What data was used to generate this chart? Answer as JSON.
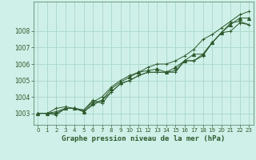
{
  "title": "Graphe pression niveau de la mer (hPa)",
  "background_color": "#cff0e8",
  "grid_color": "#a8d8cc",
  "line_color": "#2d5a2d",
  "xlim": [
    -0.5,
    23.5
  ],
  "ylim": [
    1002.3,
    1009.8
  ],
  "yticks": [
    1003,
    1004,
    1005,
    1006,
    1007,
    1008
  ],
  "xticks": [
    0,
    1,
    2,
    3,
    4,
    5,
    6,
    7,
    8,
    9,
    10,
    11,
    12,
    13,
    14,
    15,
    16,
    17,
    18,
    19,
    20,
    21,
    22,
    23
  ],
  "series": [
    [
      1003.0,
      1003.0,
      1003.0,
      1003.3,
      1003.3,
      1003.2,
      1003.8,
      1003.6,
      1004.3,
      1004.8,
      1005.0,
      1005.3,
      1005.5,
      1005.5,
      1005.5,
      1005.5,
      1006.2,
      1006.2,
      1006.6,
      1007.3,
      1007.9,
      1008.0,
      1008.5,
      1008.4
    ],
    [
      1003.0,
      1003.0,
      1002.9,
      1003.3,
      1003.3,
      1003.1,
      1003.5,
      1003.8,
      1004.3,
      1004.8,
      1005.0,
      1005.3,
      1005.5,
      1005.5,
      1005.5,
      1005.6,
      1006.2,
      1006.2,
      1006.5,
      1007.3,
      1007.9,
      1008.5,
      1008.6,
      1008.4
    ],
    [
      1003.0,
      1003.0,
      1003.1,
      1003.3,
      1003.3,
      1003.1,
      1003.6,
      1003.8,
      1004.5,
      1004.9,
      1005.2,
      1005.5,
      1005.6,
      1005.7,
      1005.5,
      1005.8,
      1006.2,
      1006.6,
      1006.6,
      1007.3,
      1007.9,
      1008.4,
      1008.8,
      1008.8
    ],
    [
      1003.0,
      1003.0,
      1003.3,
      1003.4,
      1003.3,
      1003.2,
      1003.7,
      1004.0,
      1004.6,
      1005.0,
      1005.3,
      1005.5,
      1005.8,
      1006.0,
      1006.0,
      1006.2,
      1006.5,
      1006.9,
      1007.5,
      1007.8,
      1008.2,
      1008.6,
      1009.0,
      1009.2
    ]
  ],
  "marker_styles": [
    "+",
    "+",
    "^",
    "+"
  ],
  "marker_sizes": [
    3,
    3,
    3,
    3
  ]
}
